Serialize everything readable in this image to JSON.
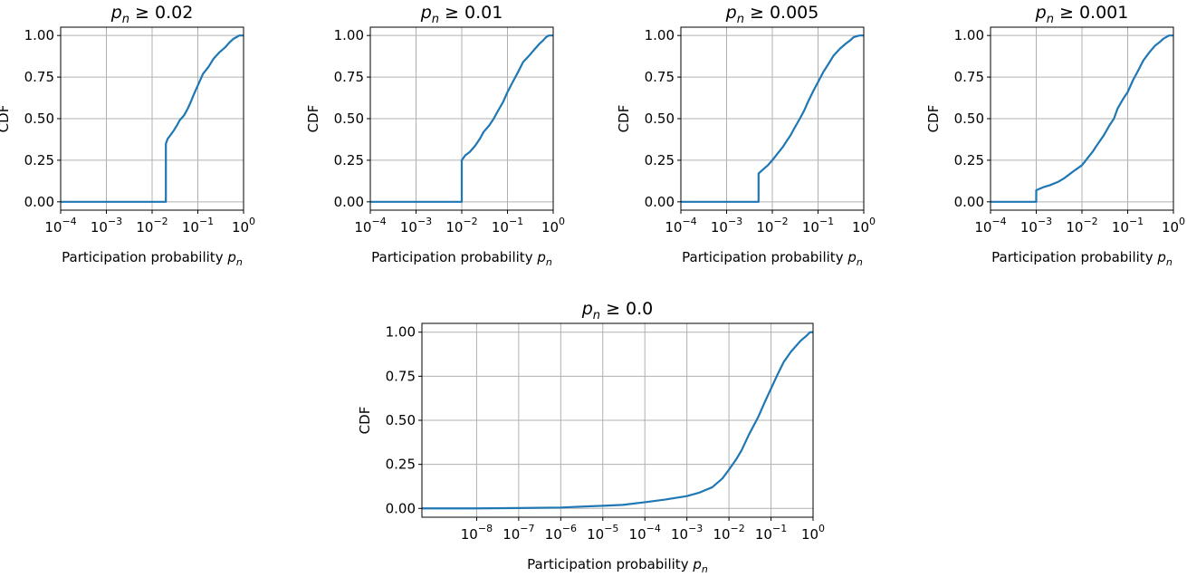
{
  "figure": {
    "background": "#ffffff",
    "line_color": "#1f77b4",
    "grid_color": "#b0b0b0"
  },
  "chart_data": [
    {
      "type": "line",
      "title": {
        "symbol": "p",
        "sub": "n",
        "rest": " ≥ 0.02"
      },
      "xlabel": {
        "text": "Participation probability ",
        "symbol": "p",
        "sub": "n"
      },
      "ylabel": "CDF",
      "xscale": "log",
      "xlim": [
        0.0001,
        1
      ],
      "ylim": [
        -0.05,
        1.05
      ],
      "yticks": [
        "0.00",
        "0.25",
        "0.50",
        "0.75",
        "1.00"
      ],
      "xtick_exponents": [
        "−4",
        "−3",
        "−2",
        "−1",
        "0"
      ],
      "grid": true,
      "series": [
        {
          "name": "CDF",
          "x": [
            0.0001,
            0.02,
            0.02,
            0.022,
            0.025,
            0.03,
            0.035,
            0.04,
            0.05,
            0.06,
            0.07,
            0.08,
            0.1,
            0.13,
            0.17,
            0.22,
            0.3,
            0.4,
            0.5,
            0.6,
            0.7,
            0.8,
            1.0
          ],
          "y": [
            0.0,
            0.0,
            0.35,
            0.38,
            0.4,
            0.43,
            0.46,
            0.49,
            0.52,
            0.56,
            0.6,
            0.64,
            0.7,
            0.77,
            0.81,
            0.86,
            0.9,
            0.93,
            0.96,
            0.98,
            0.99,
            1.0,
            1.0
          ]
        }
      ]
    },
    {
      "type": "line",
      "title": {
        "symbol": "p",
        "sub": "n",
        "rest": " ≥ 0.01"
      },
      "xlabel": {
        "text": "Participation probability ",
        "symbol": "p",
        "sub": "n"
      },
      "ylabel": "CDF",
      "xscale": "log",
      "xlim": [
        0.0001,
        1
      ],
      "ylim": [
        -0.05,
        1.05
      ],
      "yticks": [
        "0.00",
        "0.25",
        "0.50",
        "0.75",
        "1.00"
      ],
      "xtick_exponents": [
        "−4",
        "−3",
        "−2",
        "−1",
        "0"
      ],
      "grid": true,
      "series": [
        {
          "name": "CDF",
          "x": [
            0.0001,
            0.01,
            0.01,
            0.012,
            0.015,
            0.02,
            0.025,
            0.03,
            0.04,
            0.05,
            0.06,
            0.08,
            0.1,
            0.13,
            0.17,
            0.22,
            0.3,
            0.4,
            0.5,
            0.6,
            0.7,
            0.8,
            1.0
          ],
          "y": [
            0.0,
            0.0,
            0.25,
            0.28,
            0.3,
            0.34,
            0.38,
            0.42,
            0.46,
            0.5,
            0.54,
            0.6,
            0.66,
            0.72,
            0.78,
            0.84,
            0.88,
            0.92,
            0.95,
            0.97,
            0.99,
            1.0,
            1.0
          ]
        }
      ]
    },
    {
      "type": "line",
      "title": {
        "symbol": "p",
        "sub": "n",
        "rest": " ≥ 0.005"
      },
      "xlabel": {
        "text": "Participation probability ",
        "symbol": "p",
        "sub": "n"
      },
      "ylabel": "CDF",
      "xscale": "log",
      "xlim": [
        0.0001,
        1
      ],
      "ylim": [
        -0.05,
        1.05
      ],
      "yticks": [
        "0.00",
        "0.25",
        "0.50",
        "0.75",
        "1.00"
      ],
      "xtick_exponents": [
        "−4",
        "−3",
        "−2",
        "−1",
        "0"
      ],
      "grid": true,
      "series": [
        {
          "name": "CDF",
          "x": [
            0.0001,
            0.005,
            0.005,
            0.006,
            0.008,
            0.01,
            0.013,
            0.017,
            0.02,
            0.025,
            0.03,
            0.04,
            0.05,
            0.06,
            0.08,
            0.1,
            0.13,
            0.17,
            0.22,
            0.3,
            0.4,
            0.5,
            0.6,
            0.8,
            1.0
          ],
          "y": [
            0.0,
            0.0,
            0.17,
            0.19,
            0.22,
            0.25,
            0.29,
            0.33,
            0.36,
            0.4,
            0.44,
            0.5,
            0.55,
            0.6,
            0.67,
            0.72,
            0.78,
            0.83,
            0.88,
            0.92,
            0.95,
            0.97,
            0.99,
            1.0,
            1.0
          ]
        }
      ]
    },
    {
      "type": "line",
      "title": {
        "symbol": "p",
        "sub": "n",
        "rest": " ≥ 0.001"
      },
      "xlabel": {
        "text": "Participation probability ",
        "symbol": "p",
        "sub": "n"
      },
      "ylabel": "CDF",
      "xscale": "log",
      "xlim": [
        0.0001,
        1
      ],
      "ylim": [
        -0.05,
        1.05
      ],
      "yticks": [
        "0.00",
        "0.25",
        "0.50",
        "0.75",
        "1.00"
      ],
      "xtick_exponents": [
        "−4",
        "−3",
        "−2",
        "−1",
        "0"
      ],
      "grid": true,
      "series": [
        {
          "name": "CDF",
          "x": [
            0.0001,
            0.001,
            0.001,
            0.0015,
            0.002,
            0.003,
            0.004,
            0.005,
            0.007,
            0.01,
            0.013,
            0.017,
            0.02,
            0.03,
            0.04,
            0.05,
            0.06,
            0.08,
            0.1,
            0.13,
            0.17,
            0.22,
            0.3,
            0.4,
            0.5,
            0.6,
            0.8,
            1.0
          ],
          "y": [
            0.0,
            0.0,
            0.07,
            0.09,
            0.1,
            0.12,
            0.14,
            0.16,
            0.19,
            0.22,
            0.26,
            0.3,
            0.33,
            0.4,
            0.46,
            0.5,
            0.56,
            0.62,
            0.66,
            0.73,
            0.79,
            0.85,
            0.9,
            0.94,
            0.96,
            0.98,
            1.0,
            1.0
          ]
        }
      ]
    },
    {
      "type": "line",
      "title": {
        "symbol": "p",
        "sub": "n",
        "rest": " ≥ 0.0"
      },
      "xlabel": {
        "text": "Participation probability ",
        "symbol": "p",
        "sub": "n"
      },
      "ylabel": "CDF",
      "xscale": "log",
      "xlim": [
        5e-10,
        1
      ],
      "ylim": [
        -0.05,
        1.05
      ],
      "yticks": [
        "0.00",
        "0.25",
        "0.50",
        "0.75",
        "1.00"
      ],
      "xtick_exponents": [
        "−8",
        "−7",
        "−6",
        "−5",
        "−4",
        "−3",
        "−2",
        "−1",
        "0"
      ],
      "grid": true,
      "series": [
        {
          "name": "CDF",
          "x": [
            5e-10,
            1e-08,
            1e-07,
            1e-06,
            3e-06,
            1e-05,
            3e-05,
            0.0001,
            0.0003,
            0.001,
            0.002,
            0.004,
            0.007,
            0.01,
            0.015,
            0.02,
            0.03,
            0.05,
            0.07,
            0.1,
            0.15,
            0.2,
            0.3,
            0.5,
            0.7,
            0.85,
            1.0
          ],
          "y": [
            0.0,
            0.0,
            0.002,
            0.005,
            0.01,
            0.015,
            0.02,
            0.035,
            0.05,
            0.07,
            0.09,
            0.12,
            0.17,
            0.22,
            0.28,
            0.33,
            0.42,
            0.52,
            0.6,
            0.68,
            0.77,
            0.83,
            0.89,
            0.95,
            0.98,
            1.0,
            1.0
          ]
        }
      ]
    }
  ]
}
